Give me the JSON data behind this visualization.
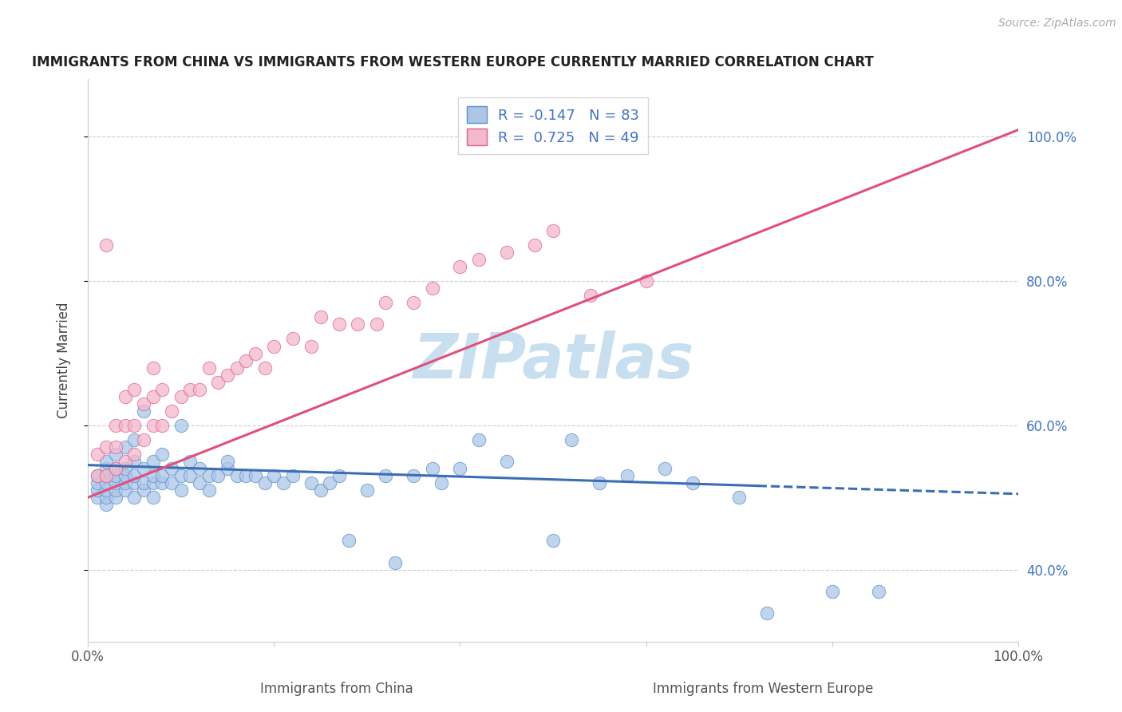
{
  "title": "IMMIGRANTS FROM CHINA VS IMMIGRANTS FROM WESTERN EUROPE CURRENTLY MARRIED CORRELATION CHART",
  "source": "Source: ZipAtlas.com",
  "xlabel_bottom": [
    "Immigrants from China",
    "Immigrants from Western Europe"
  ],
  "ylabel": "Currently Married",
  "xlim": [
    0.0,
    1.0
  ],
  "ylim": [
    0.3,
    1.08
  ],
  "blue_R": -0.147,
  "blue_N": 83,
  "pink_R": 0.725,
  "pink_N": 49,
  "blue_color": "#adc6e8",
  "pink_color": "#f2b8cb",
  "blue_edge_color": "#5b8fc9",
  "pink_edge_color": "#e06090",
  "blue_line_color": "#3c6eb4",
  "pink_line_color": "#e0507a",
  "watermark_color": "#c8dff0",
  "grid_color": "#cccccc",
  "ytick_color": "#4472c4",
  "xtick_color": "#555555",
  "y_ticks": [
    0.4,
    0.6,
    0.8,
    1.0
  ],
  "y_tick_labels": [
    "40.0%",
    "60.0%",
    "80.0%",
    "100.0%"
  ],
  "x_ticks": [
    0.0,
    0.2,
    0.4,
    0.6,
    0.8,
    1.0
  ],
  "x_tick_labels": [
    "0.0%",
    "",
    "",
    "",
    "",
    "100.0%"
  ],
  "blue_line_x0": 0.0,
  "blue_line_x1": 1.0,
  "blue_line_y0": 0.545,
  "blue_line_y1": 0.505,
  "blue_line_dash_start": 0.72,
  "pink_line_x0": 0.0,
  "pink_line_x1": 1.02,
  "pink_line_y0": 0.5,
  "pink_line_y1": 1.02,
  "blue_scatter_x": [
    0.01,
    0.01,
    0.01,
    0.01,
    0.02,
    0.02,
    0.02,
    0.02,
    0.02,
    0.02,
    0.02,
    0.03,
    0.03,
    0.03,
    0.03,
    0.03,
    0.03,
    0.04,
    0.04,
    0.04,
    0.04,
    0.04,
    0.05,
    0.05,
    0.05,
    0.05,
    0.05,
    0.06,
    0.06,
    0.06,
    0.06,
    0.07,
    0.07,
    0.07,
    0.07,
    0.08,
    0.08,
    0.08,
    0.09,
    0.09,
    0.1,
    0.1,
    0.1,
    0.11,
    0.11,
    0.12,
    0.12,
    0.13,
    0.13,
    0.14,
    0.15,
    0.15,
    0.16,
    0.17,
    0.18,
    0.19,
    0.2,
    0.21,
    0.22,
    0.24,
    0.25,
    0.26,
    0.27,
    0.28,
    0.3,
    0.32,
    0.33,
    0.35,
    0.37,
    0.38,
    0.4,
    0.42,
    0.45,
    0.5,
    0.52,
    0.55,
    0.58,
    0.62,
    0.65,
    0.7,
    0.73,
    0.8,
    0.85
  ],
  "blue_scatter_y": [
    0.5,
    0.51,
    0.52,
    0.53,
    0.49,
    0.5,
    0.51,
    0.52,
    0.53,
    0.54,
    0.55,
    0.5,
    0.51,
    0.52,
    0.53,
    0.54,
    0.56,
    0.51,
    0.52,
    0.53,
    0.54,
    0.57,
    0.5,
    0.52,
    0.53,
    0.55,
    0.58,
    0.51,
    0.52,
    0.54,
    0.62,
    0.5,
    0.52,
    0.53,
    0.55,
    0.52,
    0.53,
    0.56,
    0.52,
    0.54,
    0.51,
    0.53,
    0.6,
    0.53,
    0.55,
    0.52,
    0.54,
    0.51,
    0.53,
    0.53,
    0.54,
    0.55,
    0.53,
    0.53,
    0.53,
    0.52,
    0.53,
    0.52,
    0.53,
    0.52,
    0.51,
    0.52,
    0.53,
    0.44,
    0.51,
    0.53,
    0.41,
    0.53,
    0.54,
    0.52,
    0.54,
    0.58,
    0.55,
    0.44,
    0.58,
    0.52,
    0.53,
    0.54,
    0.52,
    0.5,
    0.34,
    0.37,
    0.37
  ],
  "pink_scatter_x": [
    0.01,
    0.01,
    0.02,
    0.02,
    0.02,
    0.03,
    0.03,
    0.03,
    0.04,
    0.04,
    0.04,
    0.05,
    0.05,
    0.05,
    0.06,
    0.06,
    0.07,
    0.07,
    0.07,
    0.08,
    0.08,
    0.09,
    0.1,
    0.11,
    0.12,
    0.13,
    0.14,
    0.15,
    0.16,
    0.17,
    0.18,
    0.19,
    0.2,
    0.22,
    0.24,
    0.25,
    0.27,
    0.29,
    0.31,
    0.32,
    0.35,
    0.37,
    0.4,
    0.42,
    0.45,
    0.48,
    0.5,
    0.54,
    0.6
  ],
  "pink_scatter_y": [
    0.53,
    0.56,
    0.53,
    0.57,
    0.85,
    0.54,
    0.57,
    0.6,
    0.55,
    0.6,
    0.64,
    0.56,
    0.6,
    0.65,
    0.58,
    0.63,
    0.6,
    0.64,
    0.68,
    0.6,
    0.65,
    0.62,
    0.64,
    0.65,
    0.65,
    0.68,
    0.66,
    0.67,
    0.68,
    0.69,
    0.7,
    0.68,
    0.71,
    0.72,
    0.71,
    0.75,
    0.74,
    0.74,
    0.74,
    0.77,
    0.77,
    0.79,
    0.82,
    0.83,
    0.84,
    0.85,
    0.87,
    0.78,
    0.8
  ]
}
